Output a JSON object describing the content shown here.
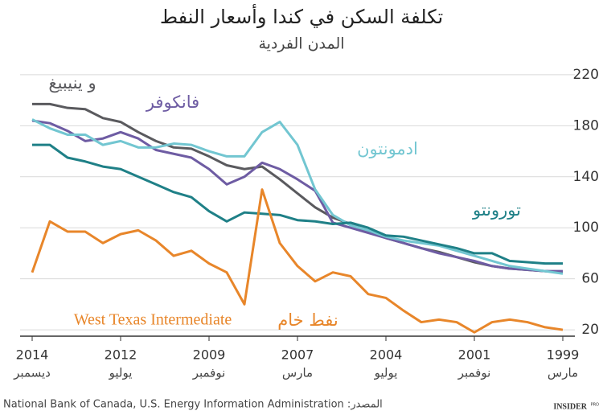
{
  "chart_data": {
    "type": "line",
    "title": "تكلفة السكن في كندا وأسعار النفط",
    "subtitle": "المدن الفردية",
    "categories": [
      "2014",
      null,
      null,
      null,
      null,
      "2012",
      null,
      null,
      null,
      null,
      "2009",
      null,
      null,
      null,
      null,
      "2007",
      null,
      null,
      null,
      null,
      "2004",
      null,
      null,
      null,
      null,
      "2001",
      null,
      null,
      null,
      null,
      "1999"
    ],
    "category_months": [
      "ديسمبر",
      null,
      null,
      null,
      null,
      "يوليو",
      null,
      null,
      null,
      null,
      "نوفمبر",
      null,
      null,
      null,
      null,
      "مارس",
      null,
      null,
      null,
      null,
      "يوليو",
      null,
      null,
      null,
      null,
      "نوفمبر",
      null,
      null,
      null,
      null,
      "مارس"
    ],
    "series": [
      {
        "name": "و ينيبيغ",
        "color": "#5a5a5e",
        "values": [
          197,
          197,
          194,
          193,
          186,
          183,
          175,
          168,
          163,
          162,
          156,
          149,
          146,
          148,
          138,
          127,
          116,
          108,
          103,
          97,
          92,
          88,
          84,
          81,
          77,
          73,
          70,
          68,
          67,
          66,
          65
        ]
      },
      {
        "name": "فانكوفر",
        "color": "#6e5ca3",
        "values": [
          184,
          182,
          176,
          168,
          170,
          175,
          170,
          161,
          158,
          155,
          146,
          134,
          140,
          151,
          146,
          138,
          129,
          104,
          100,
          96,
          92,
          88,
          84,
          80,
          77,
          74,
          70,
          68,
          67,
          66,
          66
        ]
      },
      {
        "name": "ادمونتون",
        "color": "#72c6d1",
        "values": [
          185,
          178,
          173,
          173,
          165,
          168,
          163,
          163,
          166,
          165,
          160,
          156,
          156,
          175,
          183,
          165,
          130,
          110,
          102,
          98,
          93,
          90,
          88,
          86,
          82,
          78,
          74,
          70,
          68,
          66,
          64
        ]
      },
      {
        "name": "تورونتو",
        "color": "#1f8087",
        "values": [
          165,
          165,
          155,
          152,
          148,
          146,
          140,
          134,
          128,
          124,
          113,
          105,
          112,
          111,
          110,
          106,
          105,
          103,
          104,
          100,
          94,
          93,
          90,
          87,
          84,
          80,
          80,
          74,
          73,
          72,
          72
        ]
      },
      {
        "name": "نفط خام",
        "color": "#e8862a",
        "values": [
          65,
          105,
          97,
          97,
          88,
          95,
          98,
          90,
          78,
          82,
          72,
          65,
          40,
          130,
          88,
          70,
          58,
          65,
          62,
          48,
          45,
          35,
          26,
          28,
          26,
          18,
          26,
          28,
          26,
          22,
          20
        ]
      }
    ],
    "annotation": "West Texas Intermediate",
    "ylim": [
      15,
      225
    ],
    "yticks": [
      20,
      60,
      100,
      140,
      180,
      220
    ],
    "grid": true,
    "source": "National Bank of Canada, U.S. Energy Information Administration :المصدر",
    "brand": "INSIDER",
    "brand_sup": "PRO"
  }
}
